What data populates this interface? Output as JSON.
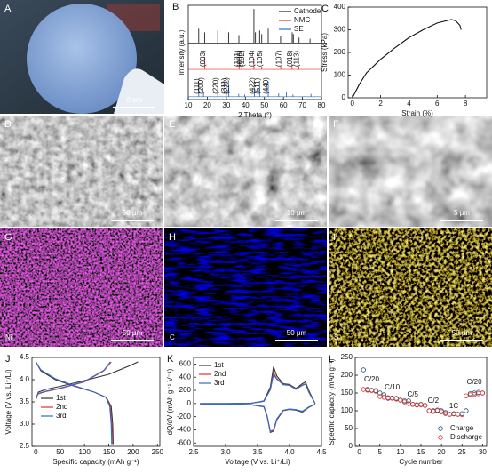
{
  "images": [
    {
      "panel": "A",
      "scale_bar": "2 cm"
    },
    {
      "panel": "D",
      "scale_bar": "50 μm"
    },
    {
      "panel": "E",
      "scale_bar": "10 μm"
    },
    {
      "panel": "F",
      "scale_bar": "5 μm"
    },
    {
      "panel": "G",
      "element": "Ni",
      "scale_bar": "50 μm"
    },
    {
      "panel": "H",
      "element": "C",
      "scale_bar": "50 μm"
    },
    {
      "panel": "I",
      "element": "S",
      "scale_bar": "50 μm"
    }
  ],
  "chart_data": [
    {
      "type": "xrd",
      "panel": "B",
      "xlabel": "2 Theta (°)",
      "ylabel": "Intensity (a.u.)",
      "xlim": [
        10,
        80
      ],
      "ylim": [
        0,
        100
      ],
      "xticks": [
        10,
        20,
        30,
        40,
        50,
        60,
        70,
        80
      ],
      "legend": "upper right",
      "series": [
        {
          "name": "Cathode",
          "color": "#222222",
          "x": [
            15.5,
            18.6,
            25.5,
            29.8,
            31.2,
            36.6,
            38.2,
            44.5,
            45.3,
            47.5,
            48.6,
            52,
            58.5,
            64.6,
            65.2,
            68.2,
            74
          ],
          "values": [
            40,
            30,
            35,
            45,
            30,
            22,
            18,
            95,
            30,
            35,
            25,
            40,
            20,
            30,
            25,
            15,
            12
          ]
        },
        {
          "name": "NMC",
          "color": "#e0312f",
          "x": [
            18.7,
            36.7,
            38.1,
            44.5,
            48.6,
            58.6,
            64.5,
            68.1
          ],
          "values": [
            35,
            15,
            12,
            30,
            8,
            10,
            15,
            9
          ],
          "annotations": [
            "(003)",
            "(101)",
            "(006)",
            "(102)",
            "(104)",
            "(105)",
            "(107)",
            "(018)",
            "(113)"
          ]
        },
        {
          "name": "SE",
          "color": "#2a6fc9",
          "x": [
            15.5,
            18,
            25.5,
            30,
            31.3,
            36.5,
            39.6,
            44.8,
            47.5,
            52,
            55,
            57.5,
            61.6,
            65,
            74.5
          ],
          "values": [
            45,
            12,
            40,
            55,
            40,
            10,
            8,
            30,
            35,
            55,
            10,
            12,
            15,
            8,
            10
          ],
          "annotations": [
            "(111)",
            "(200)",
            "(220)",
            "(311)",
            "(222)",
            "(422)",
            "(511)",
            "(440)"
          ]
        }
      ]
    },
    {
      "type": "line",
      "panel": "C",
      "xlabel": "Strain (%)",
      "ylabel": "Stress (kPa)",
      "xlim": [
        -0.3,
        9.5
      ],
      "ylim": [
        0,
        400
      ],
      "xticks": [
        0,
        2,
        4,
        6,
        8
      ],
      "yticks": [
        0,
        100,
        200,
        300,
        400
      ],
      "series": [
        {
          "color": "#111111",
          "x": [
            0,
            0.5,
            1,
            2,
            3,
            4,
            5,
            6,
            7,
            7.3,
            7.6,
            7.7
          ],
          "values": [
            0,
            60,
            110,
            170,
            220,
            265,
            300,
            330,
            345,
            340,
            320,
            300
          ]
        }
      ]
    },
    {
      "type": "line",
      "panel": "J",
      "xlabel": "Specific capacity (mAh g⁻¹)",
      "ylabel": "Voltage (V vs. Li⁺/Li)",
      "xlim": [
        -8,
        255
      ],
      "ylim": [
        2.5,
        4.5
      ],
      "xticks": [
        0,
        50,
        100,
        150,
        200,
        250
      ],
      "yticks": [
        2.5,
        {
          "value": 3,
          "label": "3.0"
        },
        3.5,
        {
          "value": 4,
          "label": "4.0"
        },
        4.5
      ],
      "legend": "center left",
      "series": [
        {
          "name": "1st",
          "color": "#333333",
          "x": [
            0,
            5,
            20,
            50,
            100,
            150,
            190,
            210,
            null,
            0,
            10,
            40,
            80,
            120,
            145,
            155,
            158,
            159
          ],
          "values": [
            3.55,
            3.72,
            3.78,
            3.85,
            3.98,
            4.12,
            4.3,
            4.4,
            null,
            4.4,
            4.2,
            4.0,
            3.85,
            3.72,
            3.6,
            3.4,
            3.0,
            2.55
          ]
        },
        {
          "name": "2nd",
          "color": "#e0312f",
          "x": [
            0,
            5,
            20,
            50,
            100,
            140,
            155,
            null,
            0,
            10,
            40,
            80,
            120,
            145,
            153,
            156,
            157
          ],
          "values": [
            3.6,
            3.68,
            3.73,
            3.8,
            3.95,
            4.2,
            4.4,
            null,
            4.4,
            4.22,
            4.02,
            3.86,
            3.72,
            3.6,
            3.4,
            3.0,
            2.55
          ]
        },
        {
          "name": "3rd",
          "color": "#2a6fc9",
          "x": [
            0,
            5,
            20,
            50,
            100,
            140,
            153,
            null,
            0,
            10,
            40,
            80,
            120,
            144,
            152,
            155,
            156
          ],
          "values": [
            3.61,
            3.69,
            3.74,
            3.81,
            3.96,
            4.21,
            4.4,
            null,
            4.4,
            4.22,
            4.02,
            3.86,
            3.72,
            3.6,
            3.4,
            3.0,
            2.55
          ]
        }
      ]
    },
    {
      "type": "line",
      "panel": "K",
      "xlabel": "Voltage (V vs. Li⁺/Li)",
      "ylabel": "dQ/dV (mAh g⁻¹ V⁻¹)",
      "xlim": [
        2.5,
        4.5
      ],
      "ylim": [
        -650,
        700
      ],
      "xticks": [
        2.5,
        {
          "value": 3,
          "label": "3.0"
        },
        3.5,
        {
          "value": 4,
          "label": "4.0"
        },
        4.5
      ],
      "yticks": [
        -600,
        -400,
        -200,
        0,
        200,
        400,
        600
      ],
      "legend": "upper left",
      "series": [
        {
          "name": "1st",
          "color": "#333333",
          "x": [
            2.6,
            3.0,
            3.4,
            3.6,
            3.7,
            3.75,
            3.8,
            3.9,
            4.0,
            4.1,
            4.2,
            4.25,
            4.3,
            4.4,
            null,
            4.4,
            4.3,
            4.2,
            4.1,
            4.0,
            3.9,
            3.8,
            3.75,
            3.7,
            3.65,
            3.6,
            3.4,
            3.0,
            2.6
          ],
          "values": [
            0,
            0,
            5,
            40,
            250,
            560,
            420,
            300,
            290,
            230,
            300,
            330,
            200,
            0,
            null,
            -10,
            -60,
            -130,
            -100,
            -90,
            -110,
            -250,
            -420,
            -440,
            -200,
            -50,
            -20,
            -10,
            -5
          ]
        },
        {
          "name": "2nd",
          "color": "#e0312f",
          "x": [
            2.6,
            3.0,
            3.4,
            3.6,
            3.7,
            3.75,
            3.8,
            3.9,
            4.0,
            4.1,
            4.2,
            4.25,
            4.3,
            4.4,
            null,
            4.4,
            4.3,
            4.2,
            4.1,
            4.0,
            3.9,
            3.8,
            3.75,
            3.7,
            3.65,
            3.6,
            3.4,
            3.0,
            2.6
          ],
          "values": [
            0,
            0,
            4,
            35,
            220,
            470,
            380,
            290,
            280,
            220,
            280,
            300,
            180,
            0,
            null,
            -10,
            -55,
            -120,
            -95,
            -85,
            -105,
            -240,
            -410,
            -430,
            -190,
            -45,
            -18,
            -10,
            -5
          ]
        },
        {
          "name": "3rd",
          "color": "#2a6fc9",
          "x": [
            2.6,
            3.0,
            3.4,
            3.6,
            3.7,
            3.75,
            3.8,
            3.9,
            4.0,
            4.1,
            4.2,
            4.25,
            4.3,
            4.4,
            null,
            4.4,
            4.3,
            4.2,
            4.1,
            4.0,
            3.9,
            3.8,
            3.75,
            3.7,
            3.65,
            3.6,
            3.4,
            3.0,
            2.6
          ],
          "values": [
            0,
            0,
            4,
            33,
            210,
            440,
            370,
            285,
            275,
            215,
            275,
            295,
            175,
            0,
            null,
            -10,
            -55,
            -118,
            -93,
            -84,
            -103,
            -235,
            -400,
            -420,
            -185,
            -45,
            -18,
            -10,
            -5
          ]
        }
      ]
    },
    {
      "type": "scatter",
      "panel": "L",
      "xlabel": "Cycle number",
      "ylabel": "Specific capacity (mAh g⁻¹)",
      "xlim": [
        -1,
        31
      ],
      "ylim": [
        0,
        250
      ],
      "xticks": [
        0,
        5,
        10,
        15,
        20,
        25,
        30
      ],
      "yticks": [
        0,
        50,
        100,
        150,
        200,
        250
      ],
      "legend": "lower right",
      "annotations": [
        "C/20",
        "C/10",
        "C/5",
        "C/2",
        "1C",
        "C/20"
      ],
      "x": [
        1,
        2,
        3,
        4,
        5,
        6,
        7,
        8,
        9,
        10,
        11,
        12,
        13,
        14,
        15,
        16,
        17,
        18,
        19,
        20,
        21,
        22,
        23,
        24,
        25,
        26,
        27,
        28,
        29,
        30
      ],
      "series": [
        {
          "name": "Charge",
          "color": "#1d4f6e",
          "values": [
            215,
            160,
            158,
            157,
            150,
            145,
            135,
            136,
            135,
            130,
            128,
            128,
            118,
            117,
            118,
            115,
            100,
            100,
            102,
            100,
            95,
            90,
            92,
            90,
            92,
            100,
            148,
            150,
            152,
            150
          ]
        },
        {
          "name": "Discharge",
          "color": "#e0312f",
          "values": [
            160,
            158,
            157,
            155,
            140,
            138,
            137,
            135,
            133,
            130,
            125,
            120,
            118,
            116,
            117,
            115,
            100,
            98,
            100,
            97,
            92,
            90,
            91,
            90,
            89,
            142,
            145,
            146,
            148,
            150
          ]
        }
      ]
    }
  ]
}
